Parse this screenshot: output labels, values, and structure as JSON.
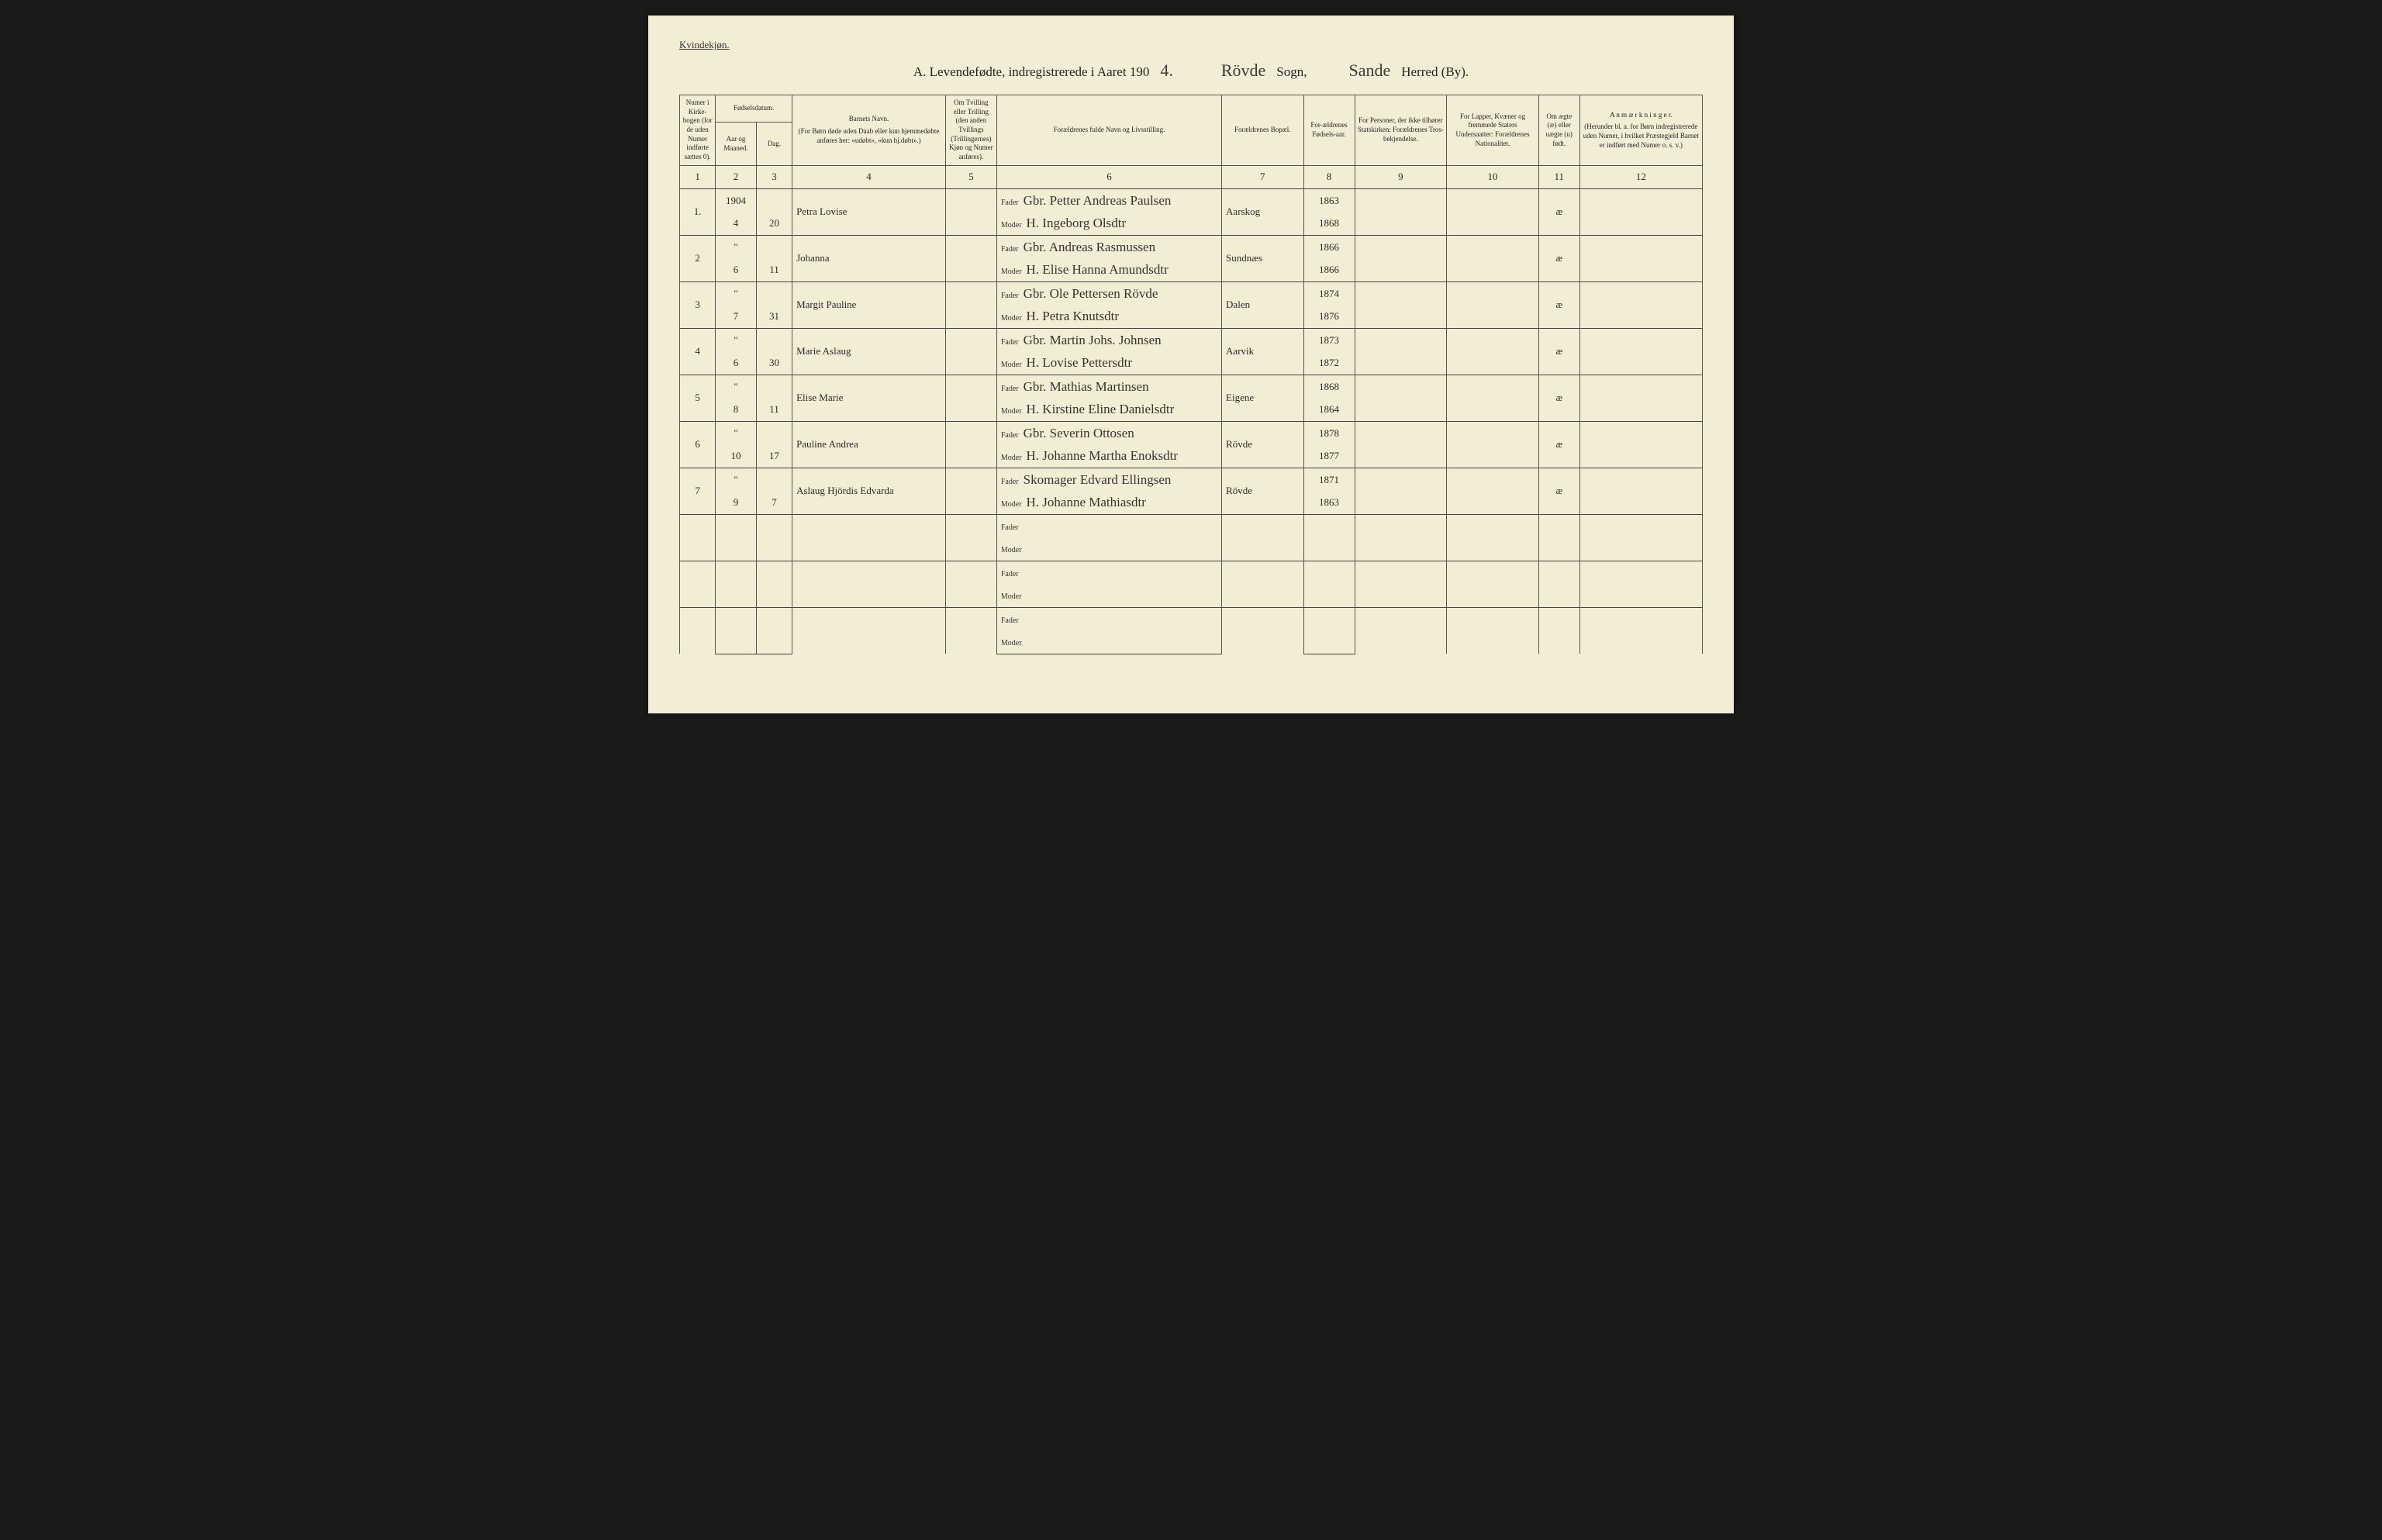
{
  "corner": "Kvindekjøn.",
  "title": {
    "prefix": "A.  Levendefødte, indregistrerede i Aaret 190",
    "year_digit": "4.",
    "sogn_value": "Rövde",
    "sogn_label": "Sogn,",
    "herred_value": "Sande",
    "herred_label": "Herred (By)."
  },
  "headers": {
    "c1": "Numer i Kirke-bogen (for de uden Numer indførte sættes 0).",
    "c2_group": "Fødselsdatum.",
    "c2": "Aar og Maaned.",
    "c3": "Dag.",
    "c4a": "Barnets Navn.",
    "c4b": "(For Børn døde uden Daab eller kun hjemmedøbte anføres her: «udøbt», «kun hj.døbt».)",
    "c5": "Om Tvilling eller Trilling (den anden Tvillings (Trillingernes) Kjøn og Numer anføres).",
    "c6": "Forældrenes fulde Navn og Livsstilling.",
    "c7": "Forældrenes Bopæl.",
    "c8": "For-ældrenes Fødsels-aar.",
    "c9": "For Personer, der ikke tilhører Statskirken: Forældrenes Tros-bekjendelse.",
    "c10": "For Lapper, Kvæner og fremmede Staters Undersaatter: Forældrenes Nationalitet.",
    "c11": "Om ægte (æ) eller uægte (u) født.",
    "c12a": "A n m æ r k n i n g e r.",
    "c12b": "(Herunder bl. a. for Børn indregistrerede uden Numer, i hvilket Præstegjeld Barnet er indført med Numer o. s. v.)"
  },
  "colnums": [
    "1",
    "2",
    "3",
    "4",
    "5",
    "6",
    "7",
    "8",
    "9",
    "10",
    "11",
    "12"
  ],
  "parent_labels": {
    "father": "Fader",
    "mother": "Moder"
  },
  "year_written": "1904",
  "rows": [
    {
      "num": "1.",
      "mon": "4",
      "day": "20",
      "child": "Petra Lovise",
      "father": "Gbr. Petter Andreas Paulsen",
      "mother": "H. Ingeborg Olsdtr",
      "place": "Aarskog",
      "fy": "1863",
      "my": "1868",
      "legit": "æ"
    },
    {
      "num": "2",
      "mon": "6",
      "day": "11",
      "child": "Johanna",
      "father": "Gbr. Andreas Rasmussen",
      "mother": "H. Elise Hanna Amundsdtr",
      "place": "Sundnæs",
      "fy": "1866",
      "my": "1866",
      "legit": "æ"
    },
    {
      "num": "3",
      "mon": "7",
      "day": "31",
      "child": "Margit Pauline",
      "father": "Gbr. Ole Pettersen Rövde",
      "mother": "H. Petra Knutsdtr",
      "place": "Dalen",
      "fy": "1874",
      "my": "1876",
      "legit": "æ"
    },
    {
      "num": "4",
      "mon": "6",
      "day": "30",
      "child": "Marie Aslaug",
      "father": "Gbr. Martin Johs. Johnsen",
      "mother": "H. Lovise Pettersdtr",
      "place": "Aarvik",
      "fy": "1873",
      "my": "1872",
      "legit": "æ"
    },
    {
      "num": "5",
      "mon": "8",
      "day": "11",
      "child": "Elise Marie",
      "father": "Gbr. Mathias Martinsen",
      "mother": "H. Kirstine Eline Danielsdtr",
      "place": "Eigene",
      "fy": "1868",
      "my": "1864",
      "legit": "æ"
    },
    {
      "num": "6",
      "mon": "10",
      "day": "17",
      "child": "Pauline Andrea",
      "father": "Gbr. Severin Ottosen",
      "mother": "H. Johanne Martha Enoksdtr",
      "place": "Rövde",
      "fy": "1878",
      "my": "1877",
      "legit": "æ"
    },
    {
      "num": "7",
      "mon": "9",
      "day": "7",
      "child": "Aslaug Hjördis Edvarda",
      "father": "Skomager Edvard Ellingsen",
      "mother": "H. Johanne Mathiasdtr",
      "place": "Rövde",
      "fy": "1871",
      "my": "1863",
      "legit": "æ"
    }
  ],
  "blank_count": 3,
  "ditto": "\""
}
